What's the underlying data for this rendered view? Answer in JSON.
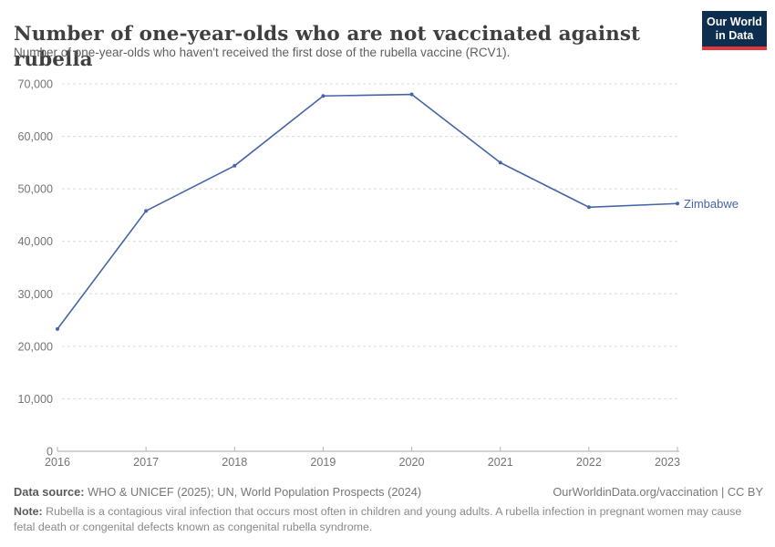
{
  "header": {
    "title": "Number of one-year-olds who are not vaccinated against rubella",
    "subtitle": "Number of one-year-olds who haven't received the first dose of the rubella vaccine (RCV1).",
    "logo": {
      "line1": "Our World",
      "line2": "in Data",
      "bg_color": "#0d2e4e",
      "accent_color": "#e2373c"
    }
  },
  "chart_data": {
    "type": "line",
    "title": "Number of one-year-olds who are not vaccinated against rubella",
    "subtitle": "Number of one-year-olds who haven't received the first dose of the rubella vaccine (RCV1).",
    "x": [
      2016,
      2017,
      2018,
      2019,
      2020,
      2021,
      2022,
      2023
    ],
    "series": [
      {
        "name": "Zimbabwe",
        "color": "#4665a8",
        "values": [
          23300,
          45800,
          54400,
          67700,
          68000,
          55000,
          46500,
          47200
        ]
      }
    ],
    "xlabel": "",
    "ylabel": "",
    "ylim": [
      0,
      70000
    ],
    "yticks": [
      0,
      10000,
      20000,
      30000,
      40000,
      50000,
      60000,
      70000
    ],
    "grid": "horizontal-dashed",
    "legend": "line-end-label",
    "colors": {
      "gridline": "#dcdcdc",
      "axis_line": "#a5a5a5",
      "tick": "#b5b5b5",
      "tick_label": "#757575"
    }
  },
  "footer": {
    "datasource_label": "Data source:",
    "datasource_text": " WHO & UNICEF (2025); UN, World Population Prospects (2024)",
    "link_text": "OurWorldinData.org/vaccination | CC BY",
    "note_label": "Note:",
    "note_text": " Rubella is a contagious viral infection that occurs most often in children and young adults. A rubella infection in pregnant women may cause fetal death or congenital defects known as congenital rubella syndrome."
  }
}
